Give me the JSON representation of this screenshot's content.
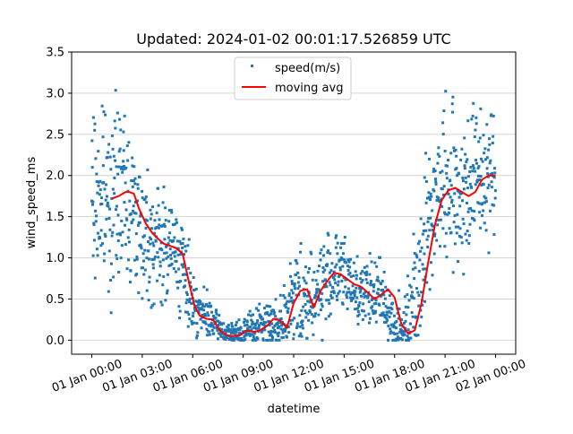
{
  "chart_data": {
    "type": "scatter",
    "title": "Updated: 2024-01-02 00:01:17.526859 UTC",
    "xlabel": "datetime",
    "ylabel": "wind_speed_ms",
    "xlim": [
      "2023-12-31T22:48",
      "2024-01-02T01:12"
    ],
    "ylim": [
      -0.17,
      3.5
    ],
    "yticks": [
      0.0,
      0.5,
      1.0,
      1.5,
      2.0,
      2.5,
      3.0,
      3.5
    ],
    "ytick_labels": [
      "0.0",
      "0.5",
      "1.0",
      "1.5",
      "2.0",
      "2.5",
      "3.0",
      "3.5"
    ],
    "xticks": [
      "2024-01-01T00:00",
      "2024-01-01T03:00",
      "2024-01-01T06:00",
      "2024-01-01T09:00",
      "2024-01-01T12:00",
      "2024-01-01T15:00",
      "2024-01-01T18:00",
      "2024-01-01T21:00",
      "2024-01-02T00:00"
    ],
    "xtick_labels": [
      "01 Jan 00:00",
      "01 Jan 03:00",
      "01 Jan 06:00",
      "01 Jan 09:00",
      "01 Jan 12:00",
      "01 Jan 15:00",
      "01 Jan 18:00",
      "01 Jan 21:00",
      "02 Jan 00:00"
    ],
    "grid": "horizontal",
    "legend_position": "top-center",
    "colors": {
      "speed": "#1f77b4",
      "moving_avg": "#ff0000",
      "grid": "#d3d3d3"
    },
    "series": [
      {
        "name": "speed(m/s)",
        "kind": "scatter",
        "x_hours": [
          0,
          0.5,
          1,
          1.5,
          2,
          2.5,
          3,
          3.5,
          4,
          4.5,
          5,
          5.5,
          6,
          6.5,
          7,
          7.5,
          8,
          8.5,
          9,
          9.5,
          10,
          10.5,
          11,
          11.5,
          12,
          12.5,
          13,
          13.5,
          14,
          14.5,
          15,
          15.5,
          16,
          16.5,
          17,
          17.5,
          18,
          18.5,
          19,
          19.5,
          20,
          20.5,
          21,
          21.5,
          22,
          22.5,
          23,
          23.5,
          24
        ],
        "median": [
          1.75,
          1.7,
          1.75,
          1.8,
          1.78,
          1.55,
          1.35,
          1.25,
          1.15,
          1.12,
          1.1,
          0.8,
          0.5,
          0.32,
          0.25,
          0.15,
          0.08,
          0.07,
          0.1,
          0.15,
          0.18,
          0.22,
          0.2,
          0.3,
          0.45,
          0.55,
          0.48,
          0.6,
          0.75,
          0.82,
          0.78,
          0.68,
          0.58,
          0.55,
          0.6,
          0.45,
          0.15,
          0.08,
          0.45,
          0.9,
          1.4,
          1.8,
          1.85,
          1.78,
          1.8,
          1.95,
          2.0,
          2.0,
          2.0
        ],
        "spread": [
          0.85,
          0.9,
          0.9,
          0.85,
          0.8,
          0.75,
          0.7,
          0.65,
          0.6,
          0.55,
          0.5,
          0.45,
          0.35,
          0.25,
          0.2,
          0.15,
          0.12,
          0.12,
          0.15,
          0.18,
          0.2,
          0.22,
          0.25,
          0.35,
          0.5,
          0.55,
          0.5,
          0.5,
          0.45,
          0.45,
          0.4,
          0.35,
          0.35,
          0.35,
          0.35,
          0.35,
          0.3,
          0.35,
          0.6,
          0.7,
          0.8,
          0.8,
          0.8,
          0.8,
          0.8,
          0.8,
          0.75,
          0.7,
          0.7
        ]
      },
      {
        "name": "moving avg",
        "kind": "line",
        "x_hours": [
          1.2,
          1.6,
          2.0,
          2.2,
          2.5,
          2.8,
          3.2,
          3.6,
          4.0,
          4.3,
          4.6,
          5.0,
          5.4,
          5.8,
          6.1,
          6.4,
          6.8,
          7.2,
          7.6,
          8.0,
          8.4,
          8.8,
          9.2,
          9.6,
          10.0,
          10.4,
          10.8,
          11.2,
          11.6,
          12.0,
          12.4,
          12.8,
          13.2,
          13.6,
          14.0,
          14.4,
          14.8,
          15.2,
          15.6,
          16.0,
          16.4,
          16.8,
          17.2,
          17.6,
          18.0,
          18.4,
          18.8,
          19.2,
          19.6,
          20.0,
          20.4,
          20.8,
          21.2,
          21.6,
          22.0,
          22.4,
          22.8,
          23.2,
          23.6,
          24.0
        ],
        "values": [
          1.72,
          1.75,
          1.8,
          1.8,
          1.78,
          1.6,
          1.42,
          1.3,
          1.22,
          1.17,
          1.15,
          1.12,
          1.05,
          0.68,
          0.42,
          0.3,
          0.26,
          0.25,
          0.12,
          0.06,
          0.05,
          0.06,
          0.12,
          0.1,
          0.12,
          0.17,
          0.26,
          0.24,
          0.15,
          0.45,
          0.6,
          0.62,
          0.4,
          0.6,
          0.72,
          0.82,
          0.8,
          0.74,
          0.68,
          0.65,
          0.58,
          0.5,
          0.55,
          0.62,
          0.52,
          0.2,
          0.08,
          0.12,
          0.45,
          0.95,
          1.4,
          1.7,
          1.82,
          1.85,
          1.8,
          1.75,
          1.8,
          1.95,
          2.0,
          2.0
        ]
      }
    ]
  }
}
